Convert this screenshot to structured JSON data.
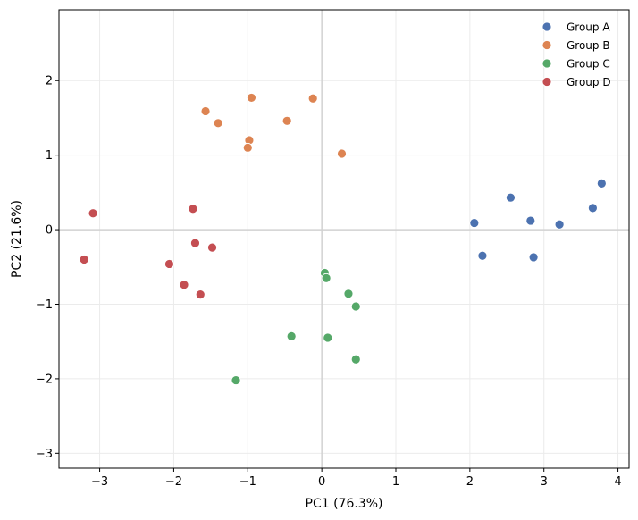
{
  "chart_data": {
    "type": "scatter",
    "title": "",
    "xlabel": "PC1 (76.3%)",
    "ylabel": "PC2 (21.6%)",
    "xlim": [
      -3.55,
      4.15
    ],
    "ylim": [
      -3.2,
      2.95
    ],
    "xticks": [
      -3,
      -2,
      -1,
      0,
      1,
      2,
      3,
      4
    ],
    "yticks": [
      -3,
      -2,
      -1,
      0,
      1,
      2
    ],
    "xtick_labels": [
      "−3",
      "−2",
      "−1",
      "0",
      "1",
      "2",
      "3",
      "4"
    ],
    "ytick_labels": [
      "−3",
      "−2",
      "−1",
      "0",
      "1",
      "2"
    ],
    "grid": true,
    "zero_lines": true,
    "legend_position": "top-right",
    "series": [
      {
        "name": "Group A",
        "color": "#4c72b0",
        "points": [
          [
            2.06,
            0.09
          ],
          [
            2.17,
            -0.35
          ],
          [
            2.55,
            0.43
          ],
          [
            2.82,
            0.12
          ],
          [
            2.86,
            -0.37
          ],
          [
            3.21,
            0.07
          ],
          [
            3.66,
            0.29
          ],
          [
            3.78,
            0.62
          ]
        ]
      },
      {
        "name": "Group B",
        "color": "#dd8452",
        "points": [
          [
            -1.57,
            1.59
          ],
          [
            -1.4,
            1.43
          ],
          [
            -0.95,
            1.77
          ],
          [
            -0.98,
            1.2
          ],
          [
            -1.0,
            1.1
          ],
          [
            -0.47,
            1.46
          ],
          [
            -0.12,
            1.76
          ],
          [
            0.27,
            1.02
          ]
        ]
      },
      {
        "name": "Group C",
        "color": "#55a868",
        "points": [
          [
            -1.16,
            -2.02
          ],
          [
            -0.41,
            -1.43
          ],
          [
            0.04,
            -0.58
          ],
          [
            0.06,
            -0.65
          ],
          [
            0.08,
            -1.45
          ],
          [
            0.36,
            -0.86
          ],
          [
            0.46,
            -1.03
          ],
          [
            0.46,
            -1.74
          ]
        ]
      },
      {
        "name": "Group D",
        "color": "#c44e52",
        "points": [
          [
            -3.21,
            -0.4
          ],
          [
            -3.09,
            0.22
          ],
          [
            -2.06,
            -0.46
          ],
          [
            -1.86,
            -0.74
          ],
          [
            -1.74,
            0.28
          ],
          [
            -1.71,
            -0.18
          ],
          [
            -1.64,
            -0.87
          ],
          [
            -1.48,
            -0.24
          ]
        ]
      }
    ]
  }
}
